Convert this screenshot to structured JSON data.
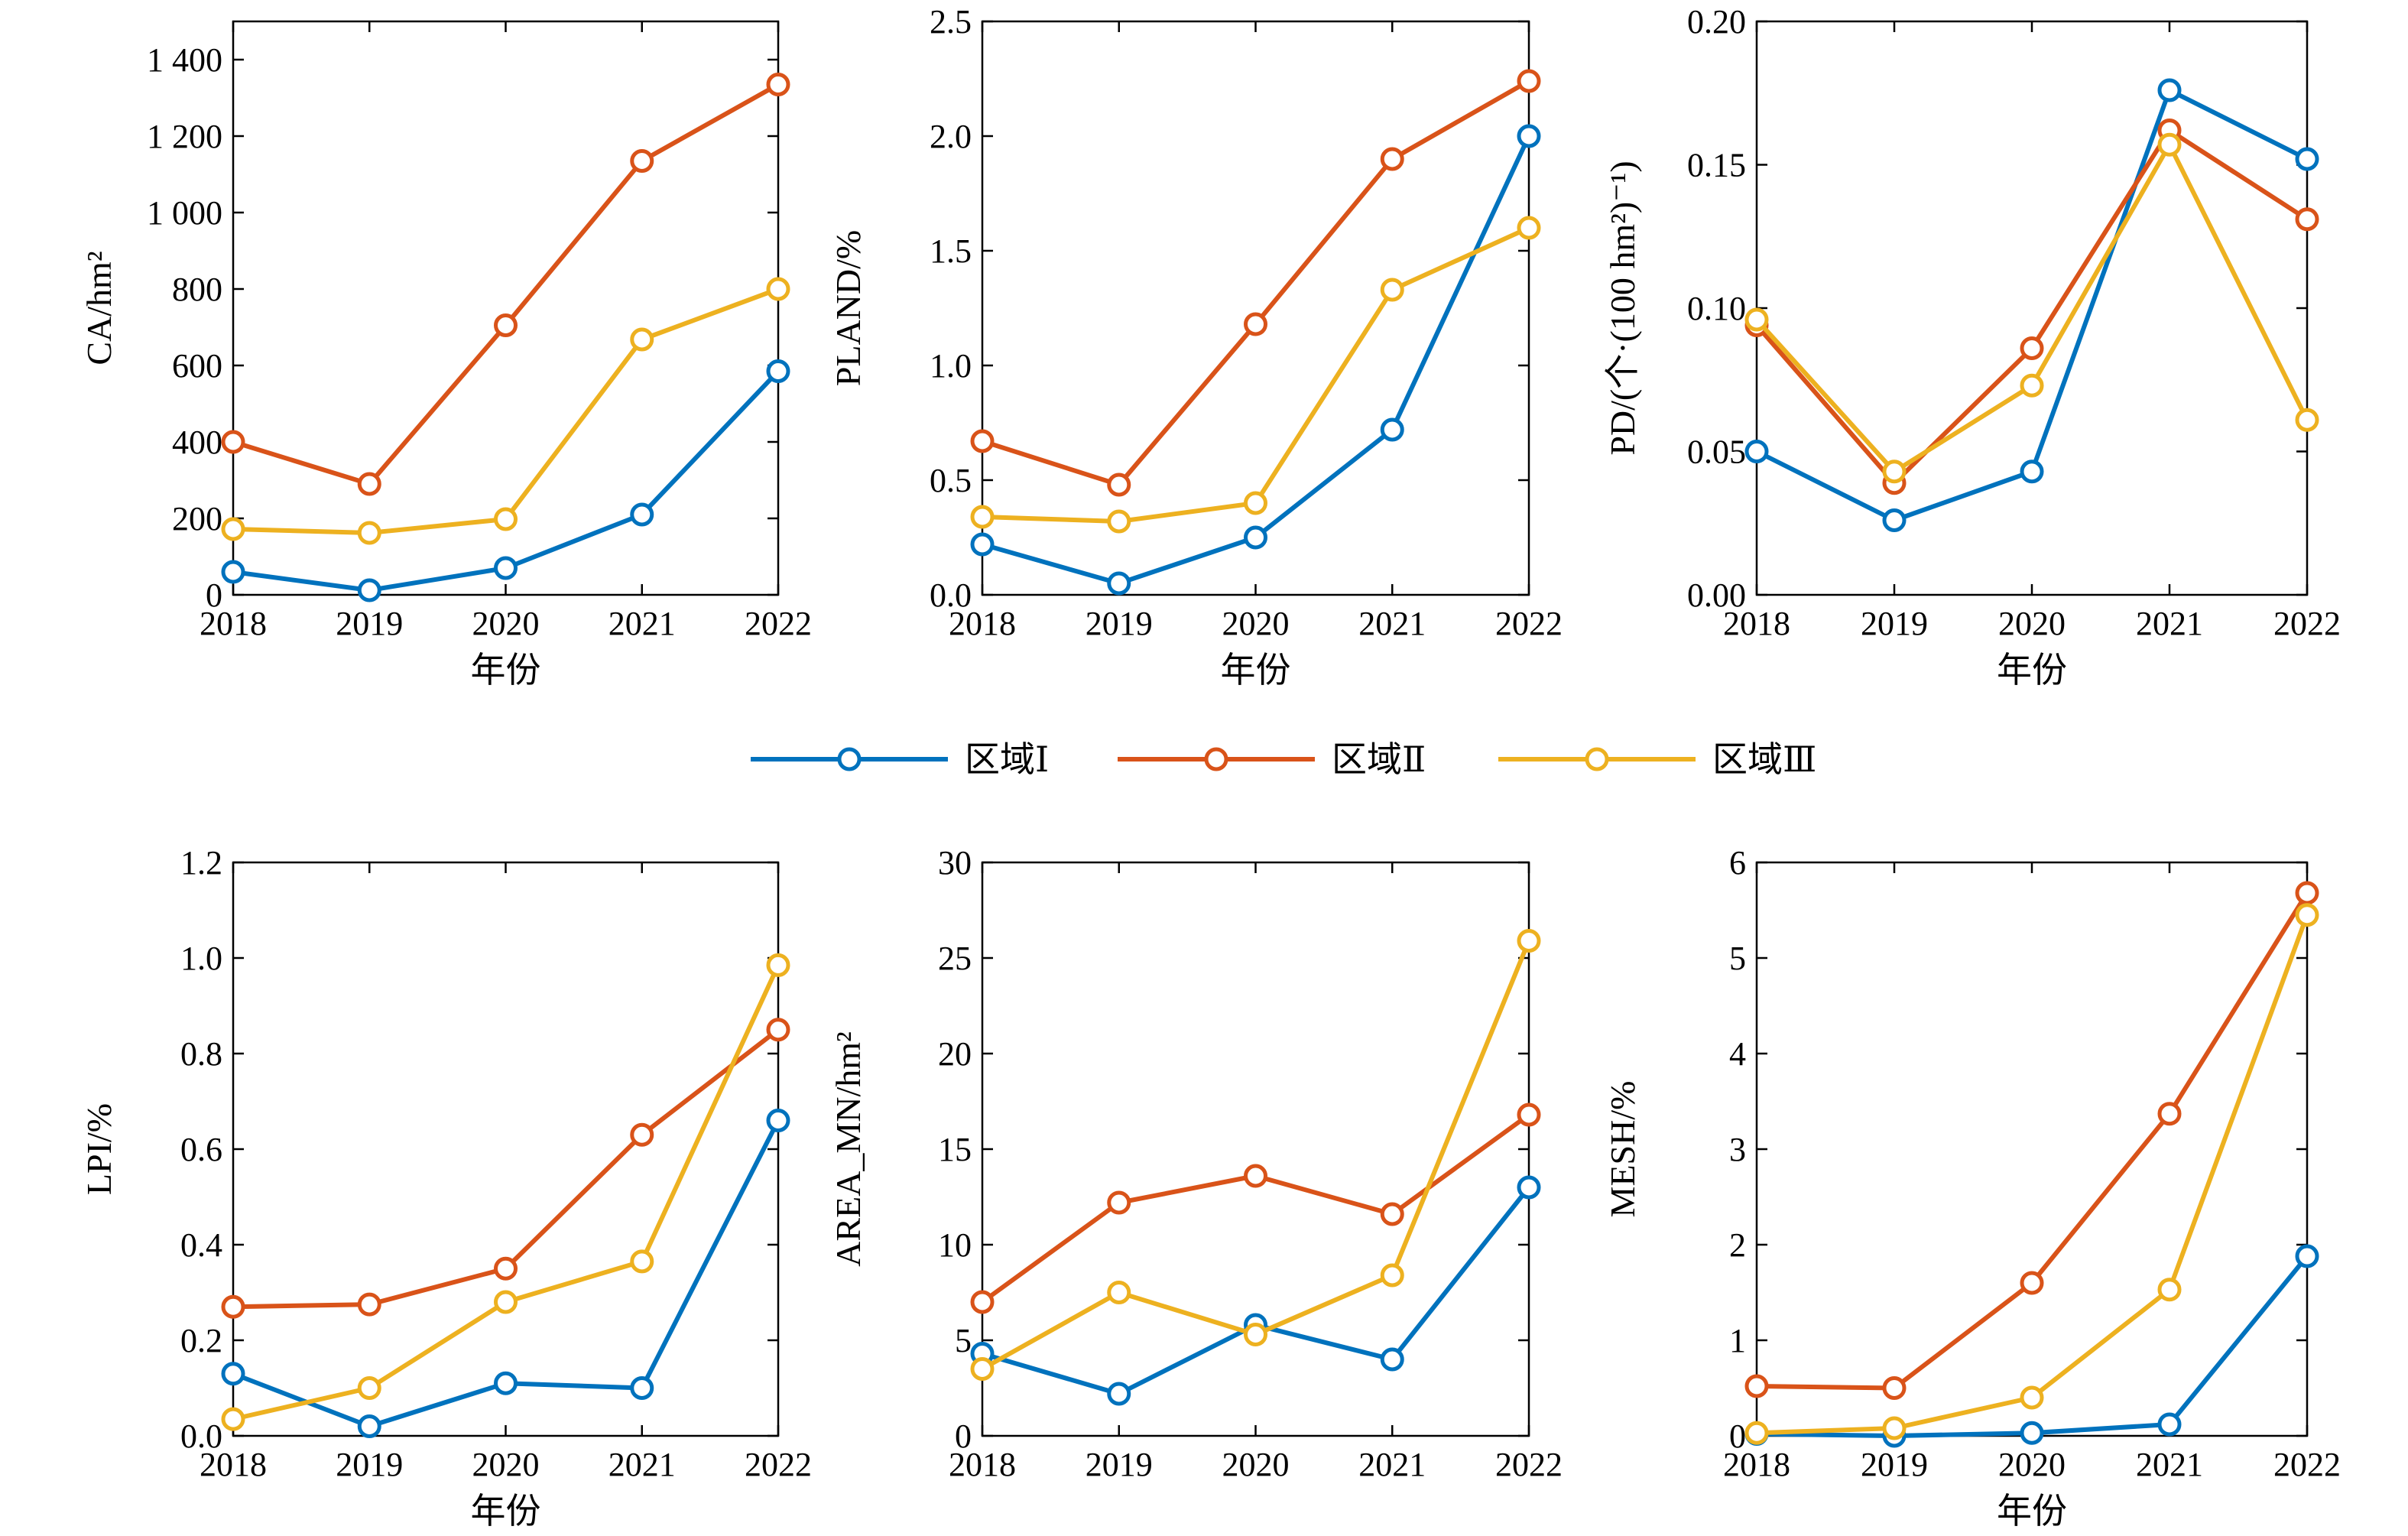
{
  "colors": {
    "s1": "#0072bd",
    "s2": "#d95319",
    "s3": "#edb120"
  },
  "legend": [
    "区域Ⅰ",
    "区域Ⅱ",
    "区域Ⅲ"
  ],
  "chart_data": [
    {
      "type": "line",
      "x": [
        "2018",
        "2019",
        "2020",
        "2021",
        "2022"
      ],
      "xlabel": "年份",
      "ylabel": "CA/hm²",
      "ylim": [
        0,
        1500
      ],
      "yticks": [
        0,
        200,
        400,
        600,
        800,
        1000,
        1200,
        1400
      ],
      "ytick_labels": [
        "0",
        "200",
        "400",
        "600",
        "800",
        "1 000",
        "1 200",
        "1 400"
      ],
      "series": [
        {
          "name": "区域Ⅰ",
          "values": [
            60,
            12,
            70,
            210,
            585
          ]
        },
        {
          "name": "区域Ⅱ",
          "values": [
            400,
            290,
            705,
            1135,
            1335
          ]
        },
        {
          "name": "区域Ⅲ",
          "values": [
            172,
            162,
            198,
            668,
            800
          ]
        }
      ]
    },
    {
      "type": "line",
      "x": [
        "2018",
        "2019",
        "2020",
        "2021",
        "2022"
      ],
      "xlabel": "年份",
      "ylabel": "PLAND/%",
      "ylim": [
        0,
        2.5
      ],
      "yticks": [
        0,
        0.5,
        1.0,
        1.5,
        2.0,
        2.5
      ],
      "ytick_labels": [
        "0.0",
        "0.5",
        "1.0",
        "1.5",
        "2.0",
        "2.5"
      ],
      "series": [
        {
          "name": "区域Ⅰ",
          "values": [
            0.22,
            0.05,
            0.25,
            0.72,
            2.0
          ]
        },
        {
          "name": "区域Ⅱ",
          "values": [
            0.67,
            0.48,
            1.18,
            1.9,
            2.24
          ]
        },
        {
          "name": "区域Ⅲ",
          "values": [
            0.34,
            0.32,
            0.4,
            1.33,
            1.6
          ]
        }
      ]
    },
    {
      "type": "line",
      "x": [
        "2018",
        "2019",
        "2020",
        "2021",
        "2022"
      ],
      "xlabel": "年份",
      "ylabel": "PD/(个·(100 hm²)⁻¹)",
      "ylim": [
        0,
        0.2
      ],
      "yticks": [
        0,
        0.05,
        0.1,
        0.15,
        0.2
      ],
      "ytick_labels": [
        "0.00",
        "0.05",
        "0.10",
        "0.15",
        "0.20"
      ],
      "series": [
        {
          "name": "区域Ⅰ",
          "values": [
            0.05,
            0.026,
            0.043,
            0.176,
            0.152
          ]
        },
        {
          "name": "区域Ⅱ",
          "values": [
            0.094,
            0.039,
            0.086,
            0.162,
            0.131
          ]
        },
        {
          "name": "区域Ⅲ",
          "values": [
            0.096,
            0.043,
            0.073,
            0.157,
            0.061
          ]
        }
      ]
    },
    {
      "type": "line",
      "x": [
        "2018",
        "2019",
        "2020",
        "2021",
        "2022"
      ],
      "xlabel": "年份",
      "ylabel": "LPI/%",
      "ylim": [
        0,
        1.2
      ],
      "yticks": [
        0,
        0.2,
        0.4,
        0.6,
        0.8,
        1.0,
        1.2
      ],
      "ytick_labels": [
        "0.0",
        "0.2",
        "0.4",
        "0.6",
        "0.8",
        "1.0",
        "1.2"
      ],
      "series": [
        {
          "name": "区域Ⅰ",
          "values": [
            0.13,
            0.02,
            0.11,
            0.1,
            0.66
          ]
        },
        {
          "name": "区域Ⅱ",
          "values": [
            0.27,
            0.275,
            0.35,
            0.63,
            0.85
          ]
        },
        {
          "name": "区域Ⅲ",
          "values": [
            0.035,
            0.1,
            0.28,
            0.365,
            0.985
          ]
        }
      ]
    },
    {
      "type": "line",
      "x": [
        "2018",
        "2019",
        "2020",
        "2021",
        "2022"
      ],
      "xlabel": "",
      "ylabel": "AREA_MN/hm²",
      "ylim": [
        0,
        30
      ],
      "yticks": [
        0,
        5,
        10,
        15,
        20,
        25,
        30
      ],
      "ytick_labels": [
        "0",
        "5",
        "10",
        "15",
        "20",
        "25",
        "30"
      ],
      "series": [
        {
          "name": "区域Ⅰ",
          "values": [
            4.3,
            2.2,
            5.8,
            4.0,
            13.0
          ]
        },
        {
          "name": "区域Ⅱ",
          "values": [
            7.0,
            12.2,
            13.6,
            11.6,
            16.8
          ]
        },
        {
          "name": "区域Ⅲ",
          "values": [
            3.5,
            7.5,
            5.3,
            8.4,
            25.9
          ]
        }
      ]
    },
    {
      "type": "line",
      "x": [
        "2018",
        "2019",
        "2020",
        "2021",
        "2022"
      ],
      "xlabel": "年份",
      "ylabel": "MESH/%",
      "ylim": [
        0,
        6
      ],
      "yticks": [
        0,
        1,
        2,
        3,
        4,
        5,
        6
      ],
      "ytick_labels": [
        "0",
        "1",
        "2",
        "3",
        "4",
        "5",
        "6"
      ],
      "series": [
        {
          "name": "区域Ⅰ",
          "values": [
            0.02,
            0.0,
            0.03,
            0.12,
            1.88
          ]
        },
        {
          "name": "区域Ⅱ",
          "values": [
            0.52,
            0.5,
            1.6,
            3.37,
            5.68
          ]
        },
        {
          "name": "区域Ⅲ",
          "values": [
            0.03,
            0.08,
            0.4,
            1.53,
            5.45
          ]
        }
      ]
    }
  ]
}
